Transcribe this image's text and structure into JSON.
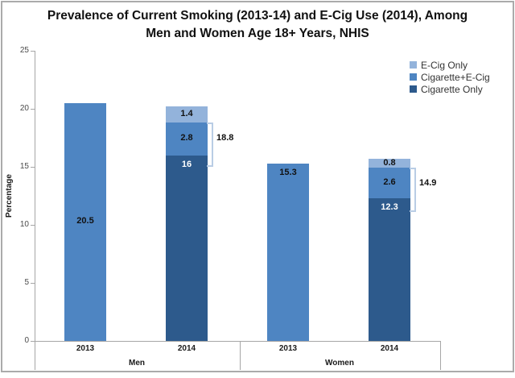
{
  "title": {
    "line1": "Prevalence of Current Smoking (2013-14) and E-Cig Use (2014), Among",
    "line2": "Men and Women Age 18+ Years, NHIS"
  },
  "y_axis": {
    "label": "Percentage",
    "ticks": [
      "25",
      "20",
      "15",
      "10",
      "5",
      "0"
    ],
    "min": 0,
    "max": 25
  },
  "x_axis": {
    "year_labels": [
      "2013",
      "2014",
      "2013",
      "2014"
    ],
    "group_labels": [
      "Men",
      "Women"
    ]
  },
  "legend": {
    "items": [
      {
        "label": "E-Cig Only",
        "color_key": "light"
      },
      {
        "label": "Cigarette+E-Cig",
        "color_key": "medium"
      },
      {
        "label": "Cigarette Only",
        "color_key": "dark"
      }
    ]
  },
  "colors": {
    "light": "#93B3DB",
    "medium": "#4E85C2",
    "dark": "#2D5A8C",
    "bracket": "#B9CDE5",
    "axis": "#A6A6A6",
    "border": "#ABABAB",
    "label_dark": "#111111",
    "label_light": "#FFFFFF"
  },
  "chart_data": {
    "type": "bar",
    "stacked": true,
    "title": "Prevalence of Current Smoking (2013-14) and E-Cig Use (2014), Among Men and Women Age 18+ Years, NHIS",
    "ylabel": "Percentage",
    "ylim": [
      0,
      25
    ],
    "ytick_interval": 5,
    "grid": false,
    "legend_position": "top-right",
    "series_names": [
      "Cigarette Only",
      "Cigarette+E-Cig",
      "E-Cig Only"
    ],
    "groups": [
      "Men",
      "Women"
    ],
    "bars": [
      {
        "group": "Men",
        "category": "2013",
        "segments": [
          {
            "series": "Cigarette+E-Cig",
            "value": 20.5,
            "label": "20.5",
            "color_key": "medium",
            "label_style": "dark",
            "label_pos": "center"
          }
        ]
      },
      {
        "group": "Men",
        "category": "2014",
        "segments": [
          {
            "series": "Cigarette Only",
            "value": 16,
            "label": "16",
            "color_key": "dark",
            "label_style": "light",
            "label_pos": "top"
          },
          {
            "series": "Cigarette+E-Cig",
            "value": 2.8,
            "label": "2.8",
            "color_key": "medium",
            "label_style": "dark",
            "label_pos": "center"
          },
          {
            "series": "E-Cig Only",
            "value": 1.4,
            "label": "1.4",
            "color_key": "light",
            "label_style": "dark",
            "label_pos": "center"
          }
        ],
        "bracket": {
          "label": "18.8",
          "value": 18.8
        }
      },
      {
        "group": "Women",
        "category": "2013",
        "segments": [
          {
            "series": "Cigarette+E-Cig",
            "value": 15.3,
            "label": "15.3",
            "color_key": "medium",
            "label_style": "dark",
            "label_pos": "top"
          }
        ]
      },
      {
        "group": "Women",
        "category": "2014",
        "segments": [
          {
            "series": "Cigarette Only",
            "value": 12.3,
            "label": "12.3",
            "color_key": "dark",
            "label_style": "light",
            "label_pos": "top"
          },
          {
            "series": "Cigarette+E-Cig",
            "value": 2.6,
            "label": "2.6",
            "color_key": "medium",
            "label_style": "dark",
            "label_pos": "center"
          },
          {
            "series": "E-Cig Only",
            "value": 0.8,
            "label": "0.8",
            "color_key": "light",
            "label_style": "dark",
            "label_pos": "center"
          }
        ],
        "bracket": {
          "label": "14.9",
          "value": 14.9
        }
      }
    ]
  }
}
